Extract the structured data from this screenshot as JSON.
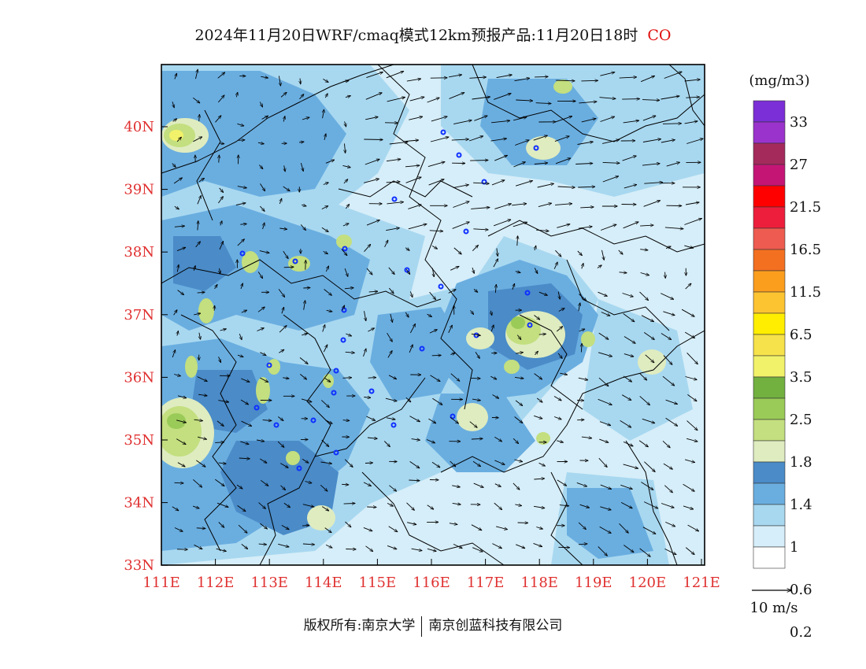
{
  "header": {
    "title": "2024年11月20日WRF/cmaq模式12km预报产品:11月20日18时",
    "species": "CO"
  },
  "map": {
    "lon_labels": [
      "111E",
      "112E",
      "113E",
      "114E",
      "115E",
      "116E",
      "117E",
      "118E",
      "119E",
      "120E",
      "121E"
    ],
    "lat_labels": [
      "40N",
      "39N",
      "38N",
      "37N",
      "36N",
      "35N",
      "34N",
      "33N"
    ],
    "colors": {
      "axis_label": "#e03030",
      "province_border": "#000000",
      "city_marker": "#1030ff",
      "wind_arrow": "#000000"
    },
    "field_colors": [
      "#ffffff",
      "#d6eef9",
      "#a8d8f0",
      "#6aaee0",
      "#4a8bc8",
      "#dfecc0",
      "#c3df7f",
      "#9acb58",
      "#72b040",
      "#f2f26a",
      "#f6e24a",
      "#ffee00",
      "#fdc432",
      "#fb9e1e",
      "#f37021",
      "#ee5b50",
      "#ec1e3c",
      "#ff0000",
      "#c41575",
      "#a42a5c",
      "#9a33cc",
      "#7b2fd6"
    ]
  },
  "colorbar": {
    "unit": "(mg/m3)",
    "labels": [
      "33",
      "27",
      "21.5",
      "16.5",
      "11.5",
      "6.5",
      "3.5",
      "2.5",
      "1.8",
      "1.4",
      "1",
      "0.6",
      "0.2"
    ],
    "bin_colors": [
      "#7b2fd6",
      "#9a33cc",
      "#a42a5c",
      "#c41575",
      "#ff0000",
      "#ec1e3c",
      "#ee5b50",
      "#f37021",
      "#fb9e1e",
      "#fdc432",
      "#ffee00",
      "#f6e24a",
      "#f2f26a",
      "#72b040",
      "#9acb58",
      "#c3df7f",
      "#dfecc0",
      "#4a8bc8",
      "#6aaee0",
      "#a8d8f0",
      "#d6eef9",
      "#ffffff"
    ]
  },
  "wind_legend": {
    "label": "10 m/s"
  },
  "footer": {
    "copyright_left": "版权所有:南京大学",
    "copyright_right": "南京创蓝科技有限公司"
  }
}
